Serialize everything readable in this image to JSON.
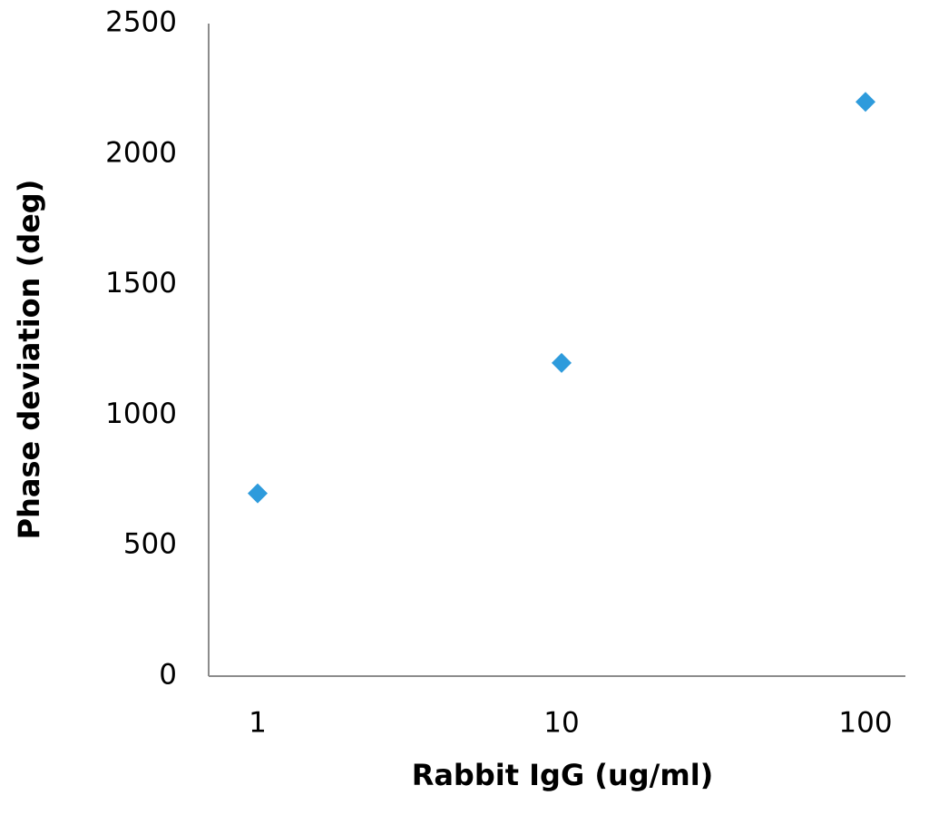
{
  "chart_data": {
    "type": "scatter",
    "title": "",
    "xlabel": "Rabbit IgG (ug/ml)",
    "ylabel": "Phase deviation (deg)",
    "x_scale": "log",
    "x_ticks": [
      "1",
      "10",
      "100"
    ],
    "y_ticks": [
      "0",
      "500",
      "1000",
      "1500",
      "2000",
      "2500"
    ],
    "ylim": [
      0,
      2500
    ],
    "grid": false,
    "legend": "none",
    "marker": "diamond",
    "series": [
      {
        "color": "#2e9bdc",
        "points": [
          {
            "x": 1,
            "y": 700
          },
          {
            "x": 10,
            "y": 1200
          },
          {
            "x": 100,
            "y": 2200
          }
        ]
      }
    ]
  }
}
